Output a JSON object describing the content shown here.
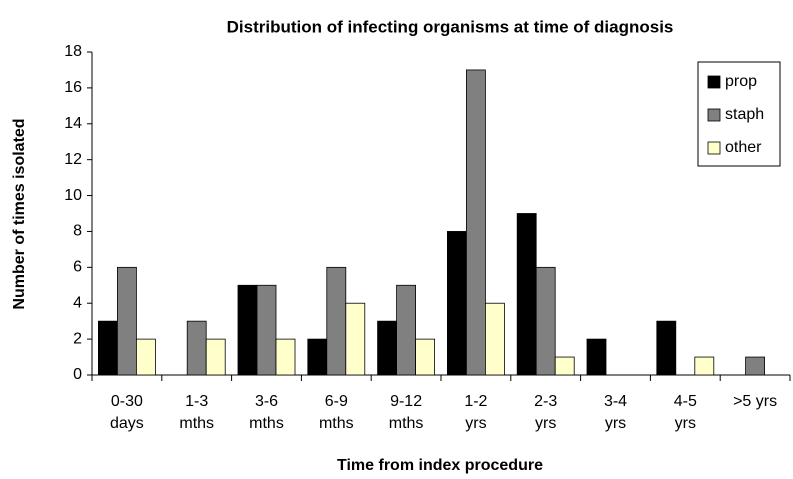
{
  "chart_data": {
    "type": "bar",
    "title": "Distribution of infecting organisms at time of diagnosis",
    "x_label": "Time from index procedure",
    "y_label": "Number of times isolated",
    "categories": [
      [
        "0-30",
        "days"
      ],
      [
        "1-3",
        "mths"
      ],
      [
        "3-6",
        "mths"
      ],
      [
        "6-9",
        "mths"
      ],
      [
        "9-12",
        "mths"
      ],
      [
        "1-2",
        "yrs"
      ],
      [
        "2-3",
        "yrs"
      ],
      [
        "3-4",
        "yrs"
      ],
      [
        "4-5",
        "yrs"
      ],
      [
        ">5 yrs"
      ]
    ],
    "series": [
      {
        "name": "prop",
        "color": "#000000",
        "values": [
          3,
          0,
          5,
          2,
          3,
          8,
          9,
          2,
          3,
          0
        ]
      },
      {
        "name": "staph",
        "color": "#808080",
        "values": [
          6,
          3,
          5,
          6,
          5,
          17,
          6,
          0,
          0,
          1
        ]
      },
      {
        "name": "other",
        "color": "#ffffcc",
        "values": [
          2,
          2,
          2,
          4,
          2,
          4,
          1,
          0,
          1,
          0
        ]
      }
    ],
    "ylim": [
      0,
      18
    ],
    "yticks": [
      0,
      2,
      4,
      6,
      8,
      10,
      12,
      14,
      16,
      18
    ],
    "legend": "top-right"
  }
}
